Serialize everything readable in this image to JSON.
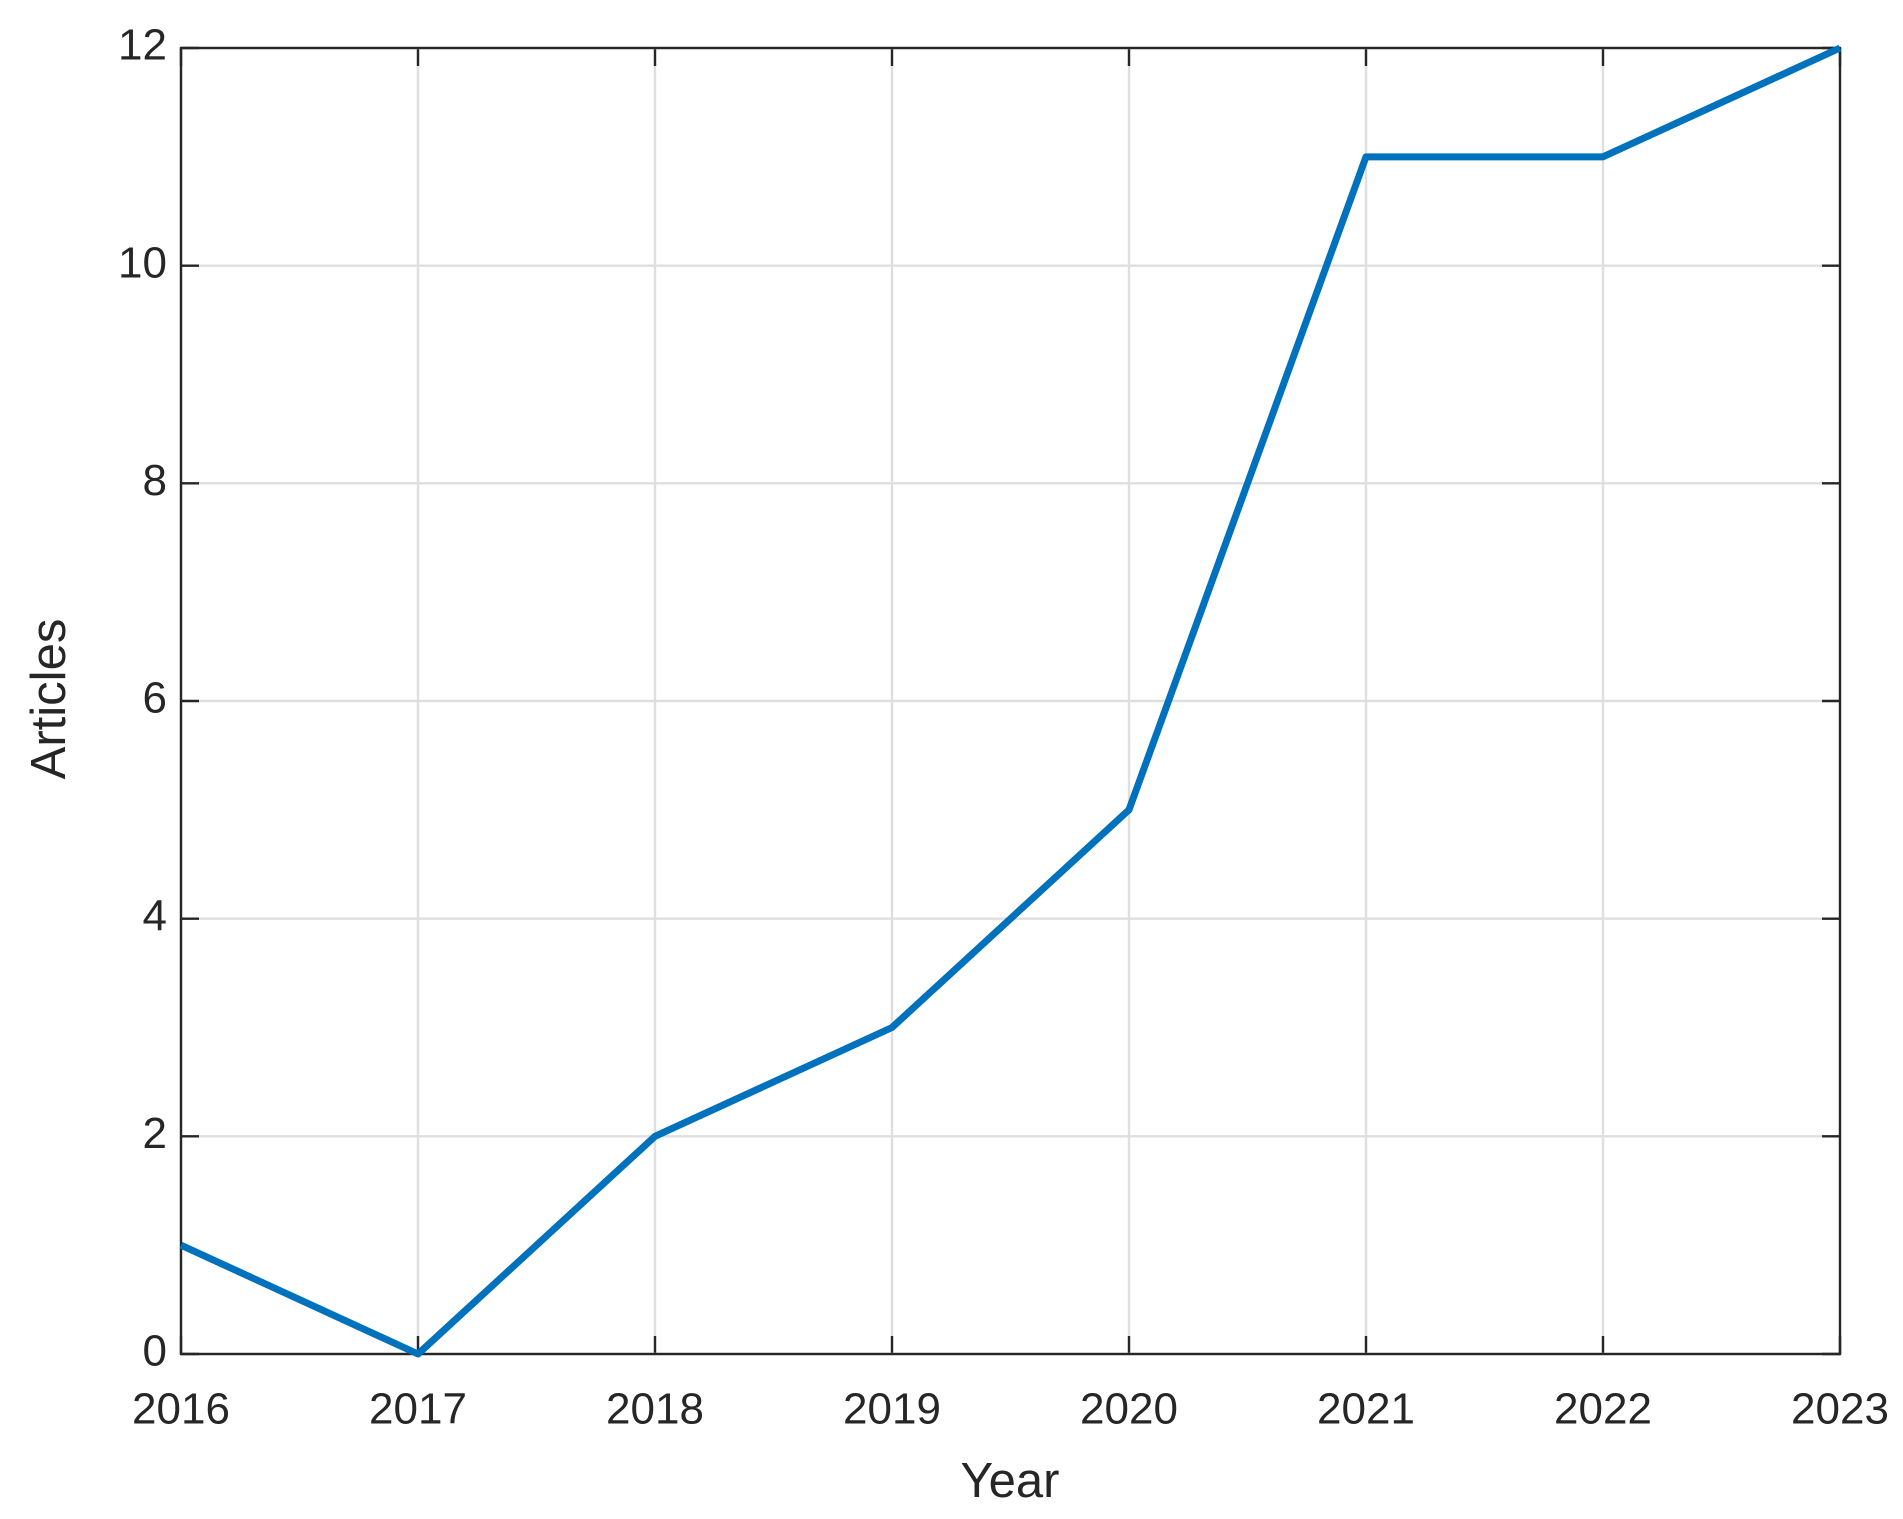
{
  "chart_data": {
    "type": "line",
    "x": [
      2016,
      2017,
      2018,
      2019,
      2020,
      2021,
      2022,
      2023
    ],
    "series": [
      {
        "name": "Articles",
        "color": "#0072bd",
        "values": [
          1,
          0,
          2,
          3,
          5,
          11,
          11,
          12
        ]
      }
    ],
    "xlabel": "Year",
    "ylabel": "Articles",
    "xlim": [
      2016,
      2023
    ],
    "xticks": [
      2016,
      2017,
      2018,
      2019,
      2020,
      2021,
      2022,
      2023
    ],
    "ylim": [
      0,
      12
    ],
    "yticks": [
      0,
      2,
      4,
      6,
      8,
      10,
      12
    ],
    "grid": true
  }
}
